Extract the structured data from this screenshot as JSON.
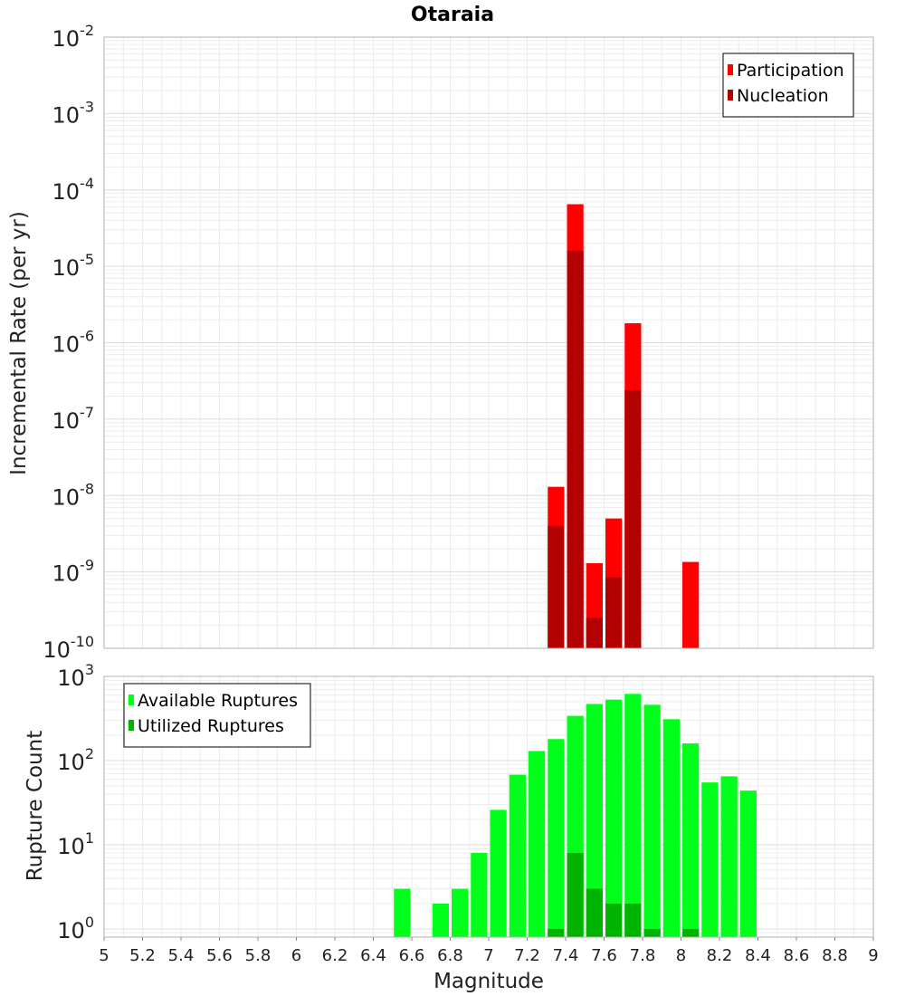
{
  "chart_data": [
    {
      "type": "bar",
      "title": "Otaraia",
      "xlabel": "",
      "ylabel": "Incremental Rate (per yr)",
      "y_scale": "log",
      "ylim": [
        1e-10,
        0.01
      ],
      "y_ticks": [
        {
          "base": "10",
          "exp": "-2"
        },
        {
          "base": "10",
          "exp": "-3"
        },
        {
          "base": "10",
          "exp": "-4"
        },
        {
          "base": "10",
          "exp": "-5"
        },
        {
          "base": "10",
          "exp": "-6"
        },
        {
          "base": "10",
          "exp": "-7"
        },
        {
          "base": "10",
          "exp": "-8"
        },
        {
          "base": "10",
          "exp": "-9"
        },
        {
          "base": "10",
          "exp": "-10"
        }
      ],
      "xlim": [
        5,
        9
      ],
      "bin_width": 0.1,
      "grid": true,
      "legend_position": "top-right",
      "series": [
        {
          "name": "Participation",
          "color": "#ff0000",
          "x": [
            7.35,
            7.45,
            7.55,
            7.65,
            7.75,
            8.05
          ],
          "values": [
            1.3e-08,
            6.5e-05,
            1.3e-09,
            5e-09,
            1.8e-06,
            1.35e-09
          ]
        },
        {
          "name": "Nucleation",
          "color": "#b30000",
          "x": [
            7.35,
            7.45,
            7.55,
            7.65,
            7.75
          ],
          "values": [
            4e-09,
            1.6e-05,
            2.5e-10,
            8.5e-10,
            2.4e-07
          ]
        }
      ]
    },
    {
      "type": "bar",
      "xlabel": "Magnitude",
      "ylabel": "Rupture Count",
      "y_scale": "log",
      "ylim": [
        0.8,
        1000
      ],
      "y_ticks": [
        {
          "base": "10",
          "exp": "3"
        },
        {
          "base": "10",
          "exp": "2"
        },
        {
          "base": "10",
          "exp": "1"
        },
        {
          "base": "10",
          "exp": "0"
        }
      ],
      "xlim": [
        5,
        9
      ],
      "x_ticks": [
        "5",
        "5.2",
        "5.4",
        "5.6",
        "5.8",
        "6",
        "6.2",
        "6.4",
        "6.6",
        "6.8",
        "7",
        "7.2",
        "7.4",
        "7.6",
        "7.8",
        "8",
        "8.2",
        "8.4",
        "8.6",
        "8.8",
        "9"
      ],
      "bin_width": 0.1,
      "grid": true,
      "legend_position": "top-left",
      "series": [
        {
          "name": "Available Ruptures",
          "color": "#00ff1a",
          "x": [
            6.55,
            6.75,
            6.85,
            6.95,
            7.05,
            7.15,
            7.25,
            7.35,
            7.45,
            7.55,
            7.65,
            7.75,
            7.85,
            7.95,
            8.05,
            8.15,
            8.25,
            8.35
          ],
          "values": [
            3,
            2,
            3,
            8,
            26,
            68,
            130,
            180,
            340,
            470,
            530,
            620,
            460,
            310,
            160,
            55,
            65,
            44
          ]
        },
        {
          "name": "Utilized Ruptures",
          "color": "#00b300",
          "x": [
            7.35,
            7.45,
            7.55,
            7.65,
            7.75,
            7.85,
            8.05
          ],
          "values": [
            1,
            8,
            3,
            2,
            2,
            1,
            1
          ]
        }
      ]
    }
  ]
}
